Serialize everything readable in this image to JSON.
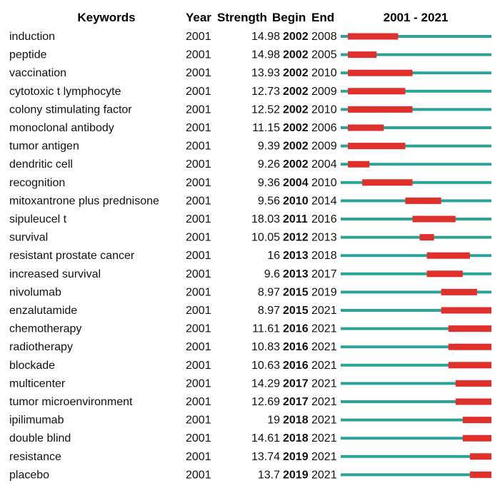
{
  "chart_data": {
    "type": "citation-burst-table",
    "headers": {
      "keywords": "Keywords",
      "year": "Year",
      "strength": "Strength",
      "begin": "Begin",
      "end": "End",
      "range": "2001 - 2021"
    },
    "timeline": {
      "start": 2001,
      "end": 2021
    },
    "colors": {
      "burst": "#e0302b",
      "baseline": "#2aa39a",
      "text": "#111111"
    },
    "rows": [
      {
        "keyword": "induction",
        "year": "2001",
        "strength": "14.98",
        "begin": "2002",
        "end": "2008"
      },
      {
        "keyword": "peptide",
        "year": "2001",
        "strength": "14.98",
        "begin": "2002",
        "end": "2005"
      },
      {
        "keyword": "vaccination",
        "year": "2001",
        "strength": "13.93",
        "begin": "2002",
        "end": "2010"
      },
      {
        "keyword": "cytotoxic t lymphocyte",
        "year": "2001",
        "strength": "12.73",
        "begin": "2002",
        "end": "2009"
      },
      {
        "keyword": "colony stimulating factor",
        "year": "2001",
        "strength": "12.52",
        "begin": "2002",
        "end": "2010"
      },
      {
        "keyword": "monoclonal antibody",
        "year": "2001",
        "strength": "11.15",
        "begin": "2002",
        "end": "2006"
      },
      {
        "keyword": "tumor antigen",
        "year": "2001",
        "strength": "9.39",
        "begin": "2002",
        "end": "2009"
      },
      {
        "keyword": "dendritic cell",
        "year": "2001",
        "strength": "9.26",
        "begin": "2002",
        "end": "2004"
      },
      {
        "keyword": "recognition",
        "year": "2001",
        "strength": "9.36",
        "begin": "2004",
        "end": "2010"
      },
      {
        "keyword": "mitoxantrone plus prednisone",
        "year": "2001",
        "strength": "9.56",
        "begin": "2010",
        "end": "2014"
      },
      {
        "keyword": "sipuleucel t",
        "year": "2001",
        "strength": "18.03",
        "begin": "2011",
        "end": "2016"
      },
      {
        "keyword": "survival",
        "year": "2001",
        "strength": "10.05",
        "begin": "2012",
        "end": "2013"
      },
      {
        "keyword": "resistant prostate cancer",
        "year": "2001",
        "strength": "16",
        "begin": "2013",
        "end": "2018"
      },
      {
        "keyword": "increased survival",
        "year": "2001",
        "strength": "9.6",
        "begin": "2013",
        "end": "2017"
      },
      {
        "keyword": "nivolumab",
        "year": "2001",
        "strength": "8.97",
        "begin": "2015",
        "end": "2019"
      },
      {
        "keyword": "enzalutamide",
        "year": "2001",
        "strength": "8.97",
        "begin": "2015",
        "end": "2021"
      },
      {
        "keyword": "chemotherapy",
        "year": "2001",
        "strength": "11.61",
        "begin": "2016",
        "end": "2021"
      },
      {
        "keyword": "radiotherapy",
        "year": "2001",
        "strength": "10.83",
        "begin": "2016",
        "end": "2021"
      },
      {
        "keyword": "blockade",
        "year": "2001",
        "strength": "10.63",
        "begin": "2016",
        "end": "2021"
      },
      {
        "keyword": "multicenter",
        "year": "2001",
        "strength": "14.29",
        "begin": "2017",
        "end": "2021"
      },
      {
        "keyword": "tumor microenvironment",
        "year": "2001",
        "strength": "12.69",
        "begin": "2017",
        "end": "2021"
      },
      {
        "keyword": "ipilimumab",
        "year": "2001",
        "strength": "19",
        "begin": "2018",
        "end": "2021"
      },
      {
        "keyword": "double blind",
        "year": "2001",
        "strength": "14.61",
        "begin": "2018",
        "end": "2021"
      },
      {
        "keyword": "resistance",
        "year": "2001",
        "strength": "13.74",
        "begin": "2019",
        "end": "2021"
      },
      {
        "keyword": "placebo",
        "year": "2001",
        "strength": "13.7",
        "begin": "2019",
        "end": "2021"
      }
    ]
  }
}
